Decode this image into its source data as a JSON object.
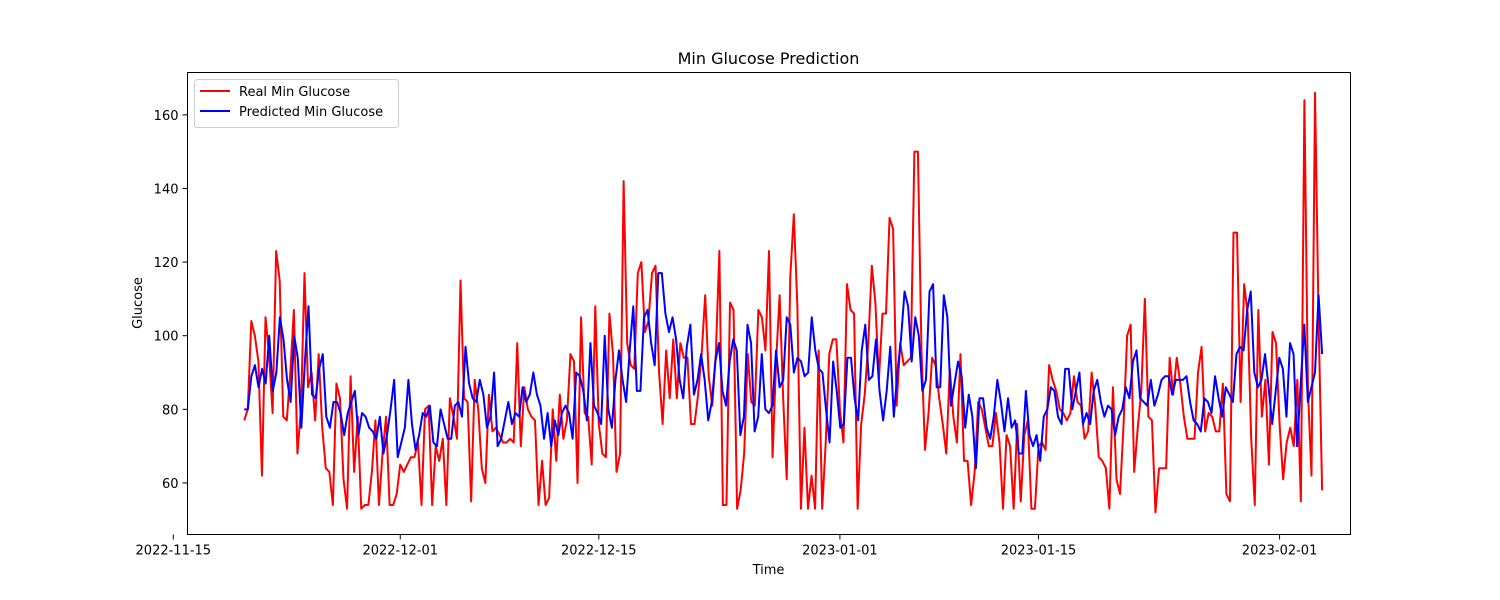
{
  "chart_data": {
    "type": "line",
    "title": "Min Glucose Prediction",
    "xlabel": "Time",
    "ylabel": "Glucose",
    "x_start": "2022-11-20",
    "x_end": "2023-02-04",
    "xlim": [
      "2022-11-16",
      "2023-02-06"
    ],
    "ylim": [
      46,
      171.5
    ],
    "x_ticks": [
      {
        "date": "2022-11-15",
        "label": "2022-11-15"
      },
      {
        "date": "2022-12-01",
        "label": "2022-12-01"
      },
      {
        "date": "2022-12-15",
        "label": "2022-12-15"
      },
      {
        "date": "2023-01-01",
        "label": "2023-01-01"
      },
      {
        "date": "2023-01-15",
        "label": "2023-01-15"
      },
      {
        "date": "2023-02-01",
        "label": "2023-02-01"
      }
    ],
    "y_ticks": [
      60,
      80,
      100,
      120,
      140,
      160
    ],
    "grid": false,
    "legend": "top-left",
    "series": [
      {
        "name": "Real Min Glucose",
        "color": "#ff0000",
        "values": [
          77,
          80,
          104,
          100,
          93,
          62,
          105,
          95,
          79,
          123,
          115,
          78,
          77,
          90,
          107,
          68,
          80,
          117,
          86,
          90,
          77,
          95,
          75,
          64,
          63,
          54,
          87,
          83,
          61,
          53,
          89,
          63,
          78,
          53,
          54,
          54,
          63,
          77,
          54,
          68,
          78,
          54,
          54,
          57,
          65,
          63,
          65,
          67,
          67,
          71,
          54,
          80,
          81,
          54,
          70,
          66,
          72,
          54,
          83,
          78,
          72,
          115,
          83,
          82,
          55,
          88,
          80,
          64,
          60,
          84,
          74,
          75,
          73,
          71,
          71,
          72,
          71,
          98,
          70,
          86,
          80,
          78,
          77,
          54,
          66,
          54,
          56,
          80,
          66,
          84,
          72,
          77,
          95,
          93,
          60,
          105,
          79,
          78,
          65,
          108,
          76,
          68,
          67,
          106,
          95,
          63,
          68,
          142,
          98,
          92,
          91,
          117,
          120,
          101,
          104,
          117,
          119,
          90,
          76,
          96,
          83,
          99,
          83,
          98,
          94,
          94,
          76,
          76,
          84,
          95,
          111,
          89,
          81,
          95,
          123,
          54,
          54,
          109,
          107,
          53,
          58,
          68,
          95,
          82,
          81,
          107,
          105,
          96,
          123,
          67,
          93,
          111,
          83,
          61,
          116,
          133,
          108,
          53,
          75,
          53,
          62,
          53,
          96,
          53,
          71,
          95,
          99,
          99,
          80,
          71,
          114,
          107,
          106,
          53,
          76,
          84,
          98,
          119,
          109,
          88,
          106,
          106,
          132,
          129,
          81,
          98,
          92,
          93,
          94,
          150,
          150,
          96,
          69,
          79,
          94,
          92,
          83,
          76,
          68,
          91,
          78,
          71,
          95,
          66,
          66,
          54,
          63,
          82,
          80,
          75,
          70,
          70,
          79,
          71,
          53,
          73,
          70,
          53,
          76,
          55,
          73,
          77,
          53,
          53,
          70,
          71,
          69,
          92,
          88,
          85,
          80,
          79,
          77,
          79,
          89,
          82,
          81,
          72,
          74,
          90,
          81,
          67,
          66,
          64,
          53,
          86,
          61,
          57,
          76,
          100,
          103,
          63,
          75,
          85,
          110,
          78,
          77,
          52,
          64,
          64,
          64,
          94,
          84,
          94,
          87,
          78,
          72,
          72,
          72,
          90,
          97,
          74,
          79,
          78,
          74,
          74,
          87,
          57,
          55,
          128,
          128,
          82,
          114,
          106,
          72,
          54,
          107,
          78,
          88,
          65,
          101,
          98,
          76,
          61,
          71,
          75,
          70,
          88,
          55,
          164,
          85,
          62,
          166,
          104,
          58
        ],
        "hidden_labels": true
      },
      {
        "name": "Predicted Min Glucose",
        "color": "#0000ff",
        "values": [
          80,
          80,
          89,
          92,
          86,
          91,
          87,
          100,
          85,
          90,
          105,
          99,
          88,
          82,
          100,
          94,
          75,
          93,
          108,
          84,
          83,
          91,
          95,
          78,
          75,
          82,
          82,
          79,
          73,
          79,
          82,
          85,
          73,
          79,
          78,
          75,
          74,
          72,
          78,
          68,
          73,
          80,
          88,
          67,
          71,
          75,
          88,
          76,
          69,
          73,
          79,
          78,
          81,
          71,
          70,
          80,
          76,
          72,
          72,
          81,
          82,
          78,
          97,
          87,
          83,
          82,
          88,
          84,
          75,
          78,
          90,
          70,
          72,
          77,
          82,
          76,
          79,
          78,
          86,
          82,
          84,
          90,
          84,
          81,
          72,
          79,
          70,
          77,
          73,
          79,
          81,
          79,
          72,
          90,
          89,
          85,
          77,
          98,
          81,
          79,
          76,
          100,
          80,
          75,
          88,
          96,
          88,
          82,
          96,
          108,
          85,
          85,
          105,
          107,
          98,
          92,
          117,
          117,
          106,
          101,
          105,
          99,
          88,
          83,
          97,
          103,
          84,
          88,
          95,
          88,
          77,
          82,
          93,
          98,
          85,
          81,
          93,
          99,
          96,
          73,
          78,
          103,
          98,
          74,
          78,
          95,
          80,
          79,
          81,
          96,
          86,
          88,
          105,
          103,
          90,
          94,
          93,
          89,
          90,
          105,
          96,
          91,
          90,
          80,
          71,
          93,
          85,
          75,
          76,
          94,
          94,
          83,
          77,
          96,
          103,
          88,
          89,
          99,
          85,
          77,
          85,
          97,
          78,
          90,
          99,
          112,
          108,
          93,
          105,
          100,
          85,
          88,
          112,
          114,
          86,
          86,
          111,
          105,
          81,
          87,
          93,
          89,
          75,
          84,
          78,
          64,
          83,
          83,
          75,
          72,
          78,
          88,
          82,
          74,
          83,
          75,
          77,
          68,
          68,
          85,
          73,
          70,
          73,
          66,
          78,
          80,
          86,
          85,
          78,
          76,
          91,
          91,
          80,
          85,
          90,
          76,
          79,
          76,
          85,
          88,
          82,
          78,
          81,
          80,
          73,
          78,
          80,
          86,
          83,
          93,
          96,
          83,
          82,
          81,
          88,
          81,
          84,
          88,
          89,
          89,
          84,
          88,
          88,
          88,
          89,
          82,
          77,
          76,
          74,
          83,
          82,
          79,
          89,
          83,
          78,
          86,
          84,
          82,
          95,
          97,
          96,
          107,
          112,
          90,
          86,
          88,
          95,
          86,
          76,
          85,
          94,
          91,
          78,
          98,
          95,
          70,
          87,
          103,
          82,
          86,
          90,
          111,
          95
        ],
        "hidden_labels": true
      }
    ]
  }
}
